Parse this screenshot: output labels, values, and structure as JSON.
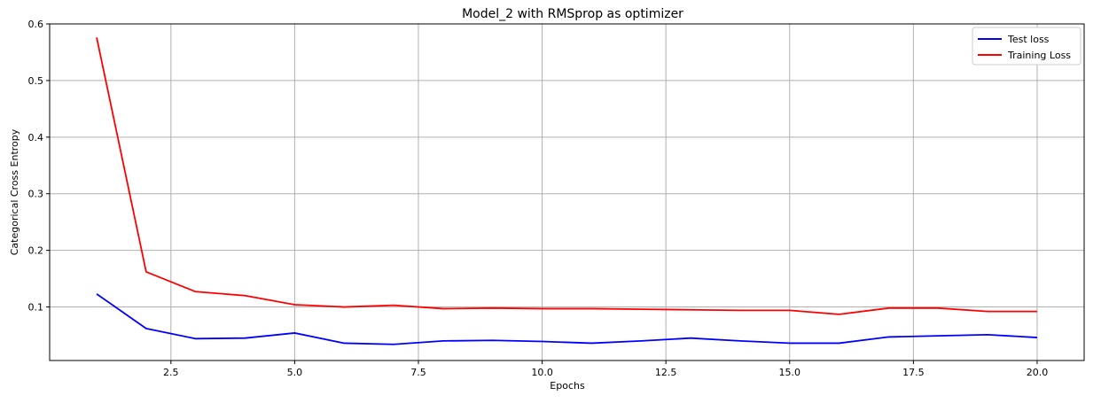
{
  "chart_data": {
    "type": "line",
    "title": "Model_2 with RMSprop as optimizer",
    "xlabel": "Epochs",
    "ylabel": "Categorical Cross Entropy",
    "x": [
      1,
      2,
      3,
      4,
      5,
      6,
      7,
      8,
      9,
      10,
      11,
      12,
      13,
      14,
      15,
      16,
      17,
      18,
      19,
      20
    ],
    "xlim": [
      0.05,
      20.95
    ],
    "ylim": [
      0.0054,
      0.6
    ],
    "xticks": [
      "2.5",
      "5.0",
      "7.5",
      "10.0",
      "12.5",
      "15.0",
      "17.5",
      "20.0"
    ],
    "yticks": [
      "0.1",
      "0.2",
      "0.3",
      "0.4",
      "0.5",
      "0.6"
    ],
    "grid": true,
    "legend_position": "top-right",
    "series": [
      {
        "name": "Test loss",
        "color": "#0000ff",
        "values": [
          0.123,
          0.062,
          0.044,
          0.045,
          0.054,
          0.036,
          0.034,
          0.04,
          0.041,
          0.039,
          0.036,
          0.04,
          0.045,
          0.04,
          0.036,
          0.036,
          0.047,
          0.049,
          0.051,
          0.046
        ]
      },
      {
        "name": "Training Loss",
        "color": "#ff0000",
        "values": [
          0.576,
          0.162,
          0.127,
          0.12,
          0.104,
          0.1,
          0.103,
          0.097,
          0.098,
          0.097,
          0.097,
          0.096,
          0.095,
          0.094,
          0.094,
          0.087,
          0.098,
          0.098,
          0.092,
          0.092
        ]
      }
    ]
  }
}
